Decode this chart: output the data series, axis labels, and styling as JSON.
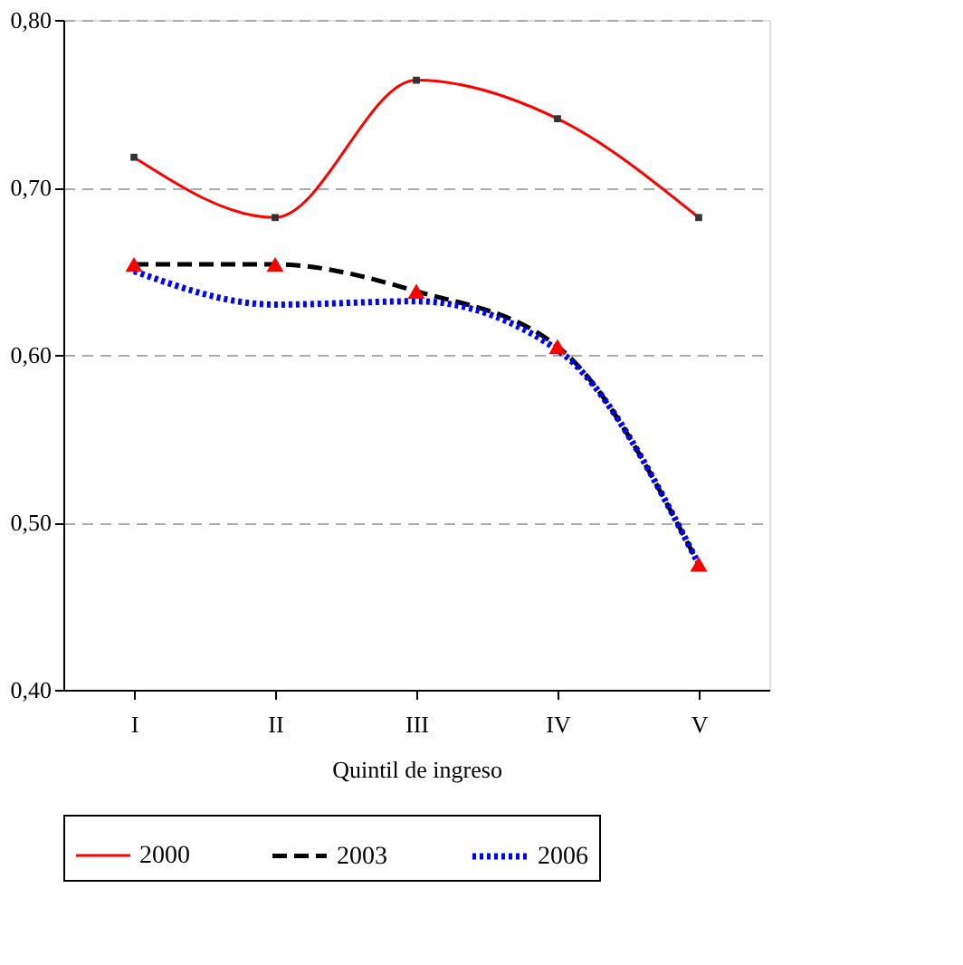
{
  "chart_data": {
    "type": "line",
    "xlabel": "Quintil de ingreso",
    "categories": [
      "I",
      "II",
      "III",
      "IV",
      "V"
    ],
    "series": [
      {
        "name": "2000",
        "color": "#ff0000",
        "values": [
          0.718,
          0.682,
          0.764,
          0.741,
          0.682
        ],
        "marker": "square",
        "line_style": "solid",
        "colors": [
          "#333333",
          "#333333",
          "#333333",
          "#333333",
          "#333333"
        ]
      },
      {
        "name": "2003",
        "color": "#000000",
        "values": [
          0.654,
          0.654,
          0.638,
          0.605,
          0.475
        ],
        "marker": "triangle",
        "line_style": "dashed",
        "colors": [
          "#ff0000",
          "#ff0000",
          "#ff0000",
          "#ff0000",
          "#ff0000"
        ]
      },
      {
        "name": "2006",
        "color": "#0000ff",
        "values": [
          0.65,
          0.63,
          0.632,
          0.603,
          0.475
        ],
        "marker": "none",
        "line_style": "dotted"
      }
    ],
    "ylim": [
      0.4,
      0.8
    ],
    "yticks": [
      {
        "value": 0.4,
        "label": "0,40"
      },
      {
        "value": 0.5,
        "label": "0,50"
      },
      {
        "value": 0.6,
        "label": "0,60"
      },
      {
        "value": 0.7,
        "label": "0,70"
      },
      {
        "value": 0.8,
        "label": "0,80"
      }
    ],
    "grid": "y",
    "legend": "bottom"
  }
}
